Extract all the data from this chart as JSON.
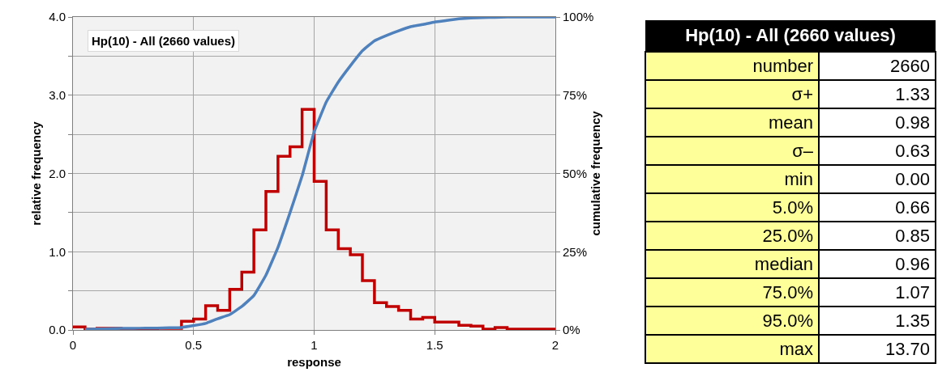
{
  "chart_data": [
    {
      "type": "histogram",
      "xlabel": "response",
      "ylabel": "relative frequency",
      "y2label": "cumulative frequency",
      "annotations": [
        "Hp(10) - All (2660 values)"
      ],
      "series": [
        {
          "type": "histogram",
          "color": "#c00000",
          "bins": [
            0,
            0.05,
            0.1,
            0.15,
            0.2,
            0.25,
            0.3,
            0.35,
            0.4,
            0.45,
            0.5,
            0.55,
            0.6,
            0.65,
            0.7,
            0.75,
            0.8,
            0.85,
            0.9,
            0.95,
            1,
            1.05,
            1.1,
            1.15,
            1.2,
            1.25,
            1.3,
            1.35,
            1.4,
            1.45,
            1.5,
            1.55,
            1.6,
            1.65,
            1.7,
            1.75,
            1.8,
            1.85,
            1.9,
            1.95,
            2
          ],
          "values": [
            0.04,
            0.01,
            0.02,
            0.02,
            0.01,
            0.01,
            0.01,
            0.02,
            0.02,
            0.11,
            0.14,
            0.31,
            0.25,
            0.52,
            0.74,
            1.28,
            1.77,
            2.22,
            2.34,
            2.82,
            1.9,
            1.28,
            1.04,
            0.96,
            0.63,
            0.35,
            0.3,
            0.25,
            0.14,
            0.16,
            0.1,
            0.1,
            0.06,
            0.05,
            0.01,
            0.03,
            0.01,
            0.01,
            0.01,
            0.01
          ]
        },
        {
          "type": "line",
          "axis": "y2",
          "color": "#4f81bd",
          "x": [
            0.05,
            0.1,
            0.15,
            0.2,
            0.25,
            0.3,
            0.35,
            0.4,
            0.45,
            0.5,
            0.55,
            0.6,
            0.65,
            0.7,
            0.75,
            0.8,
            0.85,
            0.9,
            0.95,
            1,
            1.05,
            1.1,
            1.15,
            1.2,
            1.25,
            1.3,
            1.35,
            1.4,
            1.45,
            1.5,
            1.55,
            1.6,
            1.65,
            1.7,
            1.75,
            1.8,
            1.85,
            1.9,
            1.95,
            2
          ],
          "values": [
            0.2,
            0.3,
            0.4,
            0.5,
            0.5,
            0.6,
            0.6,
            0.7,
            0.8,
            1.4,
            2.1,
            3.6,
            4.9,
            7.5,
            11,
            17.5,
            26.4,
            37.5,
            49.2,
            63.3,
            72.8,
            79.2,
            84.4,
            89.2,
            92.4,
            94.1,
            95.6,
            96.9,
            97.6,
            98.4,
            98.9,
            99.4,
            99.7,
            99.8,
            99.9,
            100,
            100,
            100,
            100,
            100
          ]
        }
      ],
      "xlim": [
        0,
        2
      ],
      "xticks": [
        0,
        0.5,
        1,
        1.5,
        2
      ],
      "ylim": [
        0,
        4
      ],
      "yticks": [
        {
          "value": 0,
          "label": "0.0"
        },
        {
          "value": 0.5,
          "label": null
        },
        {
          "value": 1,
          "label": "1.0"
        },
        {
          "value": 1.5,
          "label": null
        },
        {
          "value": 2,
          "label": "2.0"
        },
        {
          "value": 2.5,
          "label": null
        },
        {
          "value": 3,
          "label": "3.0"
        },
        {
          "value": 3.5,
          "label": null
        },
        {
          "value": 4,
          "label": "4.0"
        }
      ],
      "y2lim": [
        0,
        100
      ],
      "y2ticks": [
        {
          "value": 0,
          "label": "0%"
        },
        {
          "value": 25,
          "label": "25%"
        },
        {
          "value": 50,
          "label": "50%"
        },
        {
          "value": 75,
          "label": "75%"
        },
        {
          "value": 100,
          "label": "100%"
        }
      ],
      "grid": true,
      "legend": false,
      "line_style": "solid",
      "marker": "none"
    },
    {
      "type": "other",
      "title": "Hp(10) - All (2660 values)",
      "categories": [
        "number",
        "σ+",
        "mean",
        "σ–",
        "min",
        "5.0%",
        "25.0%",
        "median",
        "75.0%",
        "95.0%",
        "max"
      ],
      "value_labels": [
        "2660",
        "1.33",
        "0.98",
        "0.63",
        "0.00",
        "0.66",
        "0.85",
        "0.96",
        "1.07",
        "1.35",
        "13.70"
      ]
    }
  ]
}
